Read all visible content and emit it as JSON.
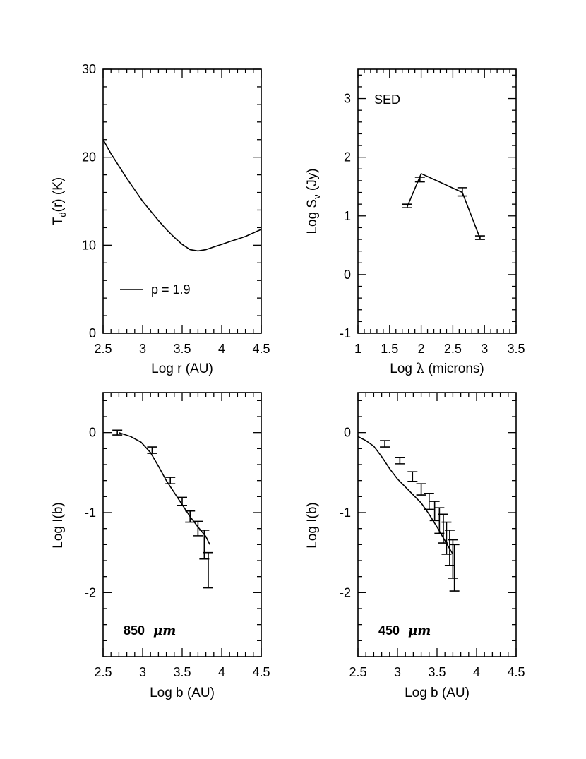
{
  "chart_data": [
    {
      "id": "temperature",
      "type": "line",
      "xlabel": "Log r (AU)",
      "ylabel": {
        "main": "T",
        "sub": "d",
        "rest": "(r)  (K)"
      },
      "xlim": [
        2.5,
        4.5
      ],
      "ylim": [
        0,
        30
      ],
      "xticks": {
        "major": [
          2.5,
          3,
          3.5,
          4,
          4.5
        ],
        "minor": 0.1
      },
      "yticks": {
        "major": [
          0,
          10,
          20,
          30
        ],
        "minor": 2
      },
      "xtick_labels": [
        "2.5",
        "3",
        "3.5",
        "4",
        "4.5"
      ],
      "ytick_labels": [
        "0",
        "10",
        "20",
        "30"
      ],
      "legend": {
        "label": "p = 1.9",
        "placement": "bottom-left"
      },
      "series": [
        {
          "name": "p = 1.9",
          "x": [
            2.5,
            2.6,
            2.7,
            2.8,
            2.9,
            3.0,
            3.1,
            3.2,
            3.3,
            3.4,
            3.5,
            3.6,
            3.7,
            3.8,
            3.9,
            4.0,
            4.1,
            4.2,
            4.3,
            4.4,
            4.5
          ],
          "y": [
            22.0,
            20.4,
            19.0,
            17.6,
            16.3,
            15.0,
            13.9,
            12.8,
            11.8,
            10.9,
            10.1,
            9.5,
            9.35,
            9.5,
            9.8,
            10.1,
            10.4,
            10.7,
            11.0,
            11.4,
            11.8
          ]
        }
      ]
    },
    {
      "id": "sed",
      "type": "line",
      "xlabel": {
        "pre": "Log ",
        "sym": "λ",
        "post": " (microns)"
      },
      "ylabel": {
        "main": "Log  S",
        "sub": "ν",
        "rest": "  (Jy)"
      },
      "xlim": [
        1,
        3.5
      ],
      "ylim": [
        -1,
        3.5
      ],
      "xticks": {
        "major": [
          1,
          1.5,
          2,
          2.5,
          3,
          3.5
        ],
        "minor": 0.1
      },
      "yticks": {
        "major": [
          -1,
          0,
          1,
          2,
          3
        ],
        "minor": 0.2
      },
      "xtick_labels": [
        "1",
        "1.5",
        "2",
        "2.5",
        "3",
        "3.5"
      ],
      "ytick_labels": [
        "-1",
        "0",
        "1",
        "2",
        "3"
      ],
      "annotation": "SED",
      "series": [
        {
          "name": "model",
          "x": [
            1.78,
            2.0,
            2.65,
            2.93
          ],
          "y": [
            1.16,
            1.72,
            1.4,
            0.62
          ]
        }
      ],
      "points": [
        {
          "x": 1.78,
          "y": 1.17,
          "err": 0.03
        },
        {
          "x": 1.98,
          "y": 1.62,
          "err": 0.04
        },
        {
          "x": 2.65,
          "y": 1.41,
          "err": 0.07
        },
        {
          "x": 2.93,
          "y": 0.63,
          "err": 0.03
        }
      ]
    },
    {
      "id": "profile850",
      "type": "line",
      "xlabel": "Log b (AU)",
      "ylabel": {
        "main": "Log I(b)",
        "sub": "",
        "rest": ""
      },
      "xlim": [
        2.5,
        4.5
      ],
      "ylim": [
        -2.8,
        0.5
      ],
      "xticks": {
        "major": [
          2.5,
          3,
          3.5,
          4,
          4.5
        ],
        "minor": 0.1
      },
      "yticks": {
        "major": [
          -2,
          -1,
          0
        ],
        "minor": 0.2
      },
      "xtick_labels": [
        "2.5",
        "3",
        "3.5",
        "4",
        "4.5"
      ],
      "ytick_labels": [
        "-2",
        "-1",
        "0"
      ],
      "annotation": {
        "num": "850",
        "unit": "μm"
      },
      "series": [
        {
          "name": "model",
          "x": [
            2.7,
            2.85,
            2.98,
            3.1,
            3.2,
            3.3,
            3.4,
            3.5,
            3.6,
            3.7,
            3.8,
            3.85
          ],
          "y": [
            0.0,
            -0.05,
            -0.12,
            -0.25,
            -0.42,
            -0.6,
            -0.75,
            -0.9,
            -1.05,
            -1.18,
            -1.3,
            -1.4
          ]
        }
      ],
      "points": [
        {
          "x": 2.68,
          "y": 0.0,
          "err": 0.03
        },
        {
          "x": 3.12,
          "y": -0.22,
          "err": 0.04
        },
        {
          "x": 3.35,
          "y": -0.6,
          "err": 0.04
        },
        {
          "x": 3.5,
          "y": -0.86,
          "err": 0.05
        },
        {
          "x": 3.6,
          "y": -1.05,
          "err": 0.07
        },
        {
          "x": 3.7,
          "y": -1.2,
          "err": 0.09
        },
        {
          "x": 3.78,
          "y": -1.4,
          "err": 0.18
        },
        {
          "x": 3.83,
          "y": -1.72,
          "err": 0.22
        }
      ]
    },
    {
      "id": "profile450",
      "type": "line",
      "xlabel": "Log b (AU)",
      "ylabel": {
        "main": "Log I(b)",
        "sub": "",
        "rest": ""
      },
      "xlim": [
        2.5,
        4.5
      ],
      "ylim": [
        -2.8,
        0.5
      ],
      "xticks": {
        "major": [
          2.5,
          3,
          3.5,
          4,
          4.5
        ],
        "minor": 0.1
      },
      "yticks": {
        "major": [
          -2,
          -1,
          0
        ],
        "minor": 0.2
      },
      "xtick_labels": [
        "2.5",
        "3",
        "3.5",
        "4",
        "4.5"
      ],
      "ytick_labels": [
        "-2",
        "-1",
        "0"
      ],
      "annotation": {
        "num": "450",
        "unit": "μm"
      },
      "series": [
        {
          "name": "model",
          "x": [
            2.5,
            2.6,
            2.7,
            2.8,
            2.9,
            3.0,
            3.1,
            3.2,
            3.3,
            3.4,
            3.5,
            3.6,
            3.7
          ],
          "y": [
            -0.05,
            -0.1,
            -0.17,
            -0.3,
            -0.45,
            -0.58,
            -0.68,
            -0.78,
            -0.88,
            -1.02,
            -1.18,
            -1.35,
            -1.52
          ]
        }
      ],
      "points": [
        {
          "x": 2.84,
          "y": -0.14,
          "err": 0.04
        },
        {
          "x": 3.03,
          "y": -0.35,
          "err": 0.04
        },
        {
          "x": 3.19,
          "y": -0.55,
          "err": 0.06
        },
        {
          "x": 3.3,
          "y": -0.71,
          "err": 0.07
        },
        {
          "x": 3.4,
          "y": -0.86,
          "err": 0.1
        },
        {
          "x": 3.47,
          "y": -0.98,
          "err": 0.12
        },
        {
          "x": 3.53,
          "y": -1.1,
          "err": 0.16
        },
        {
          "x": 3.58,
          "y": -1.2,
          "err": 0.18
        },
        {
          "x": 3.62,
          "y": -1.32,
          "err": 0.2
        },
        {
          "x": 3.66,
          "y": -1.44,
          "err": 0.22
        },
        {
          "x": 3.7,
          "y": -1.58,
          "err": 0.24
        },
        {
          "x": 3.72,
          "y": -1.69,
          "err": 0.29
        }
      ]
    }
  ]
}
